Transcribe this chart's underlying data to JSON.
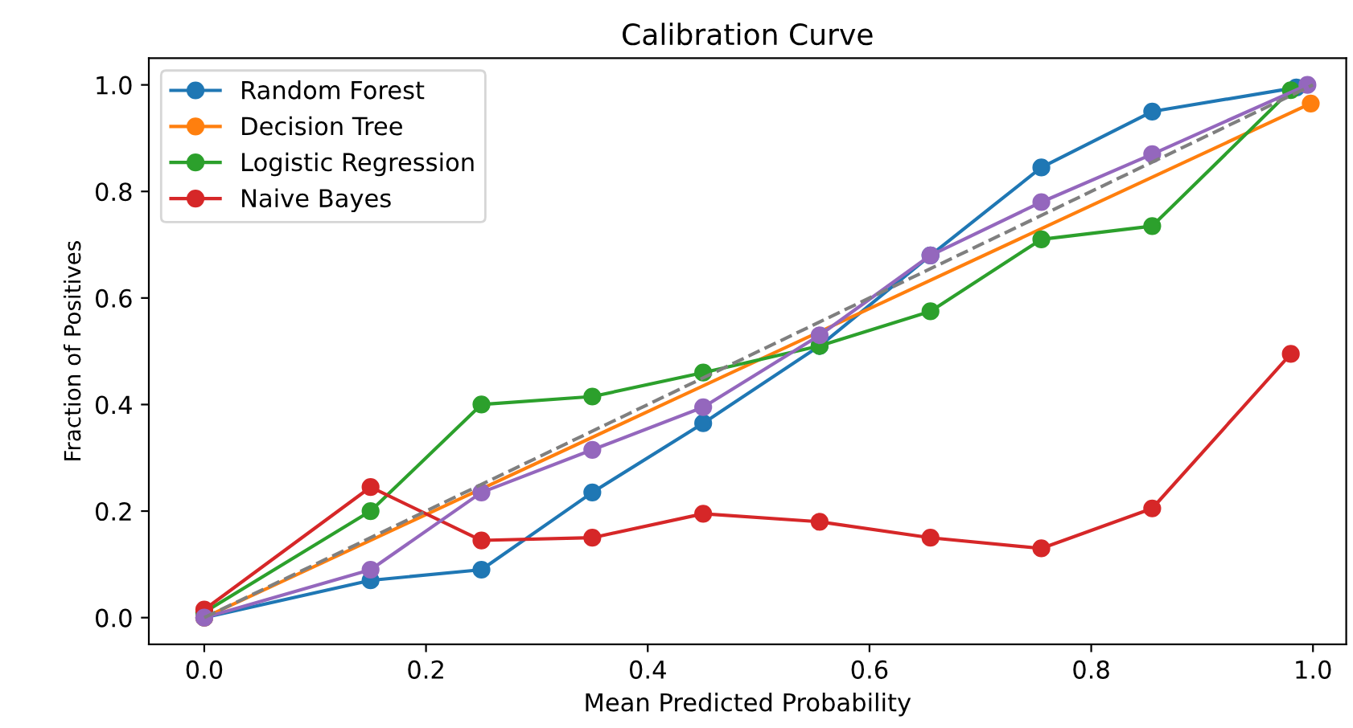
{
  "chart_data": {
    "type": "line",
    "title": "Calibration Curve",
    "xlabel": "Mean Predicted Probability",
    "ylabel": "Fraction of Positives",
    "xlim": [
      -0.05,
      1.03
    ],
    "ylim": [
      -0.05,
      1.05
    ],
    "xticks": [
      {
        "value": 0,
        "label": "0.0"
      },
      0.2,
      0.4,
      0.6,
      0.8,
      {
        "value": 1,
        "label": "1.0"
      }
    ],
    "yticks": [
      {
        "value": 0,
        "label": "0.0"
      },
      0.2,
      0.4,
      0.6,
      0.8,
      {
        "value": 1,
        "label": "1.0"
      }
    ],
    "grid": false,
    "legend": "top left",
    "marker": "circle",
    "series": [
      {
        "name": "Random Forest",
        "color": "#1f77b4",
        "x": [
          0,
          0.15,
          0.25,
          0.35,
          0.45,
          0.555,
          0.655,
          0.755,
          0.855,
          0.985
        ],
        "values": [
          0,
          0.07,
          0.09,
          0.235,
          0.365,
          0.51,
          0.68,
          0.845,
          0.95,
          0.995
        ]
      },
      {
        "name": "Decision Tree",
        "color": "#ff7f0e",
        "x": [
          0,
          0.998
        ],
        "values": [
          0,
          0.965
        ]
      },
      {
        "name": "Logistic Regression",
        "color": "#2ca02c",
        "x": [
          0,
          0.15,
          0.25,
          0.35,
          0.45,
          0.555,
          0.655,
          0.755,
          0.855,
          0.98
        ],
        "values": [
          0.01,
          0.2,
          0.4,
          0.415,
          0.46,
          0.51,
          0.575,
          0.71,
          0.735,
          0.99
        ]
      },
      {
        "name": "Naive Bayes",
        "color": "#d62728",
        "x": [
          0,
          0.15,
          0.25,
          0.35,
          0.45,
          0.555,
          0.655,
          0.755,
          0.855,
          0.98
        ],
        "values": [
          0.015,
          0.245,
          0.145,
          0.15,
          0.195,
          0.18,
          0.15,
          0.13,
          0.205,
          0.495
        ]
      },
      {
        "color": "#9467bd",
        "x": [
          0,
          0.15,
          0.25,
          0.35,
          0.45,
          0.555,
          0.655,
          0.755,
          0.855,
          0.995
        ],
        "values": [
          0,
          0.09,
          0.235,
          0.315,
          0.395,
          0.53,
          0.68,
          0.78,
          0.87,
          1.0
        ]
      },
      {
        "color": "#7f7f7f",
        "x": [
          0,
          1
        ],
        "values": [
          0,
          1
        ],
        "line_style": "dashed",
        "marker": "none"
      }
    ]
  }
}
